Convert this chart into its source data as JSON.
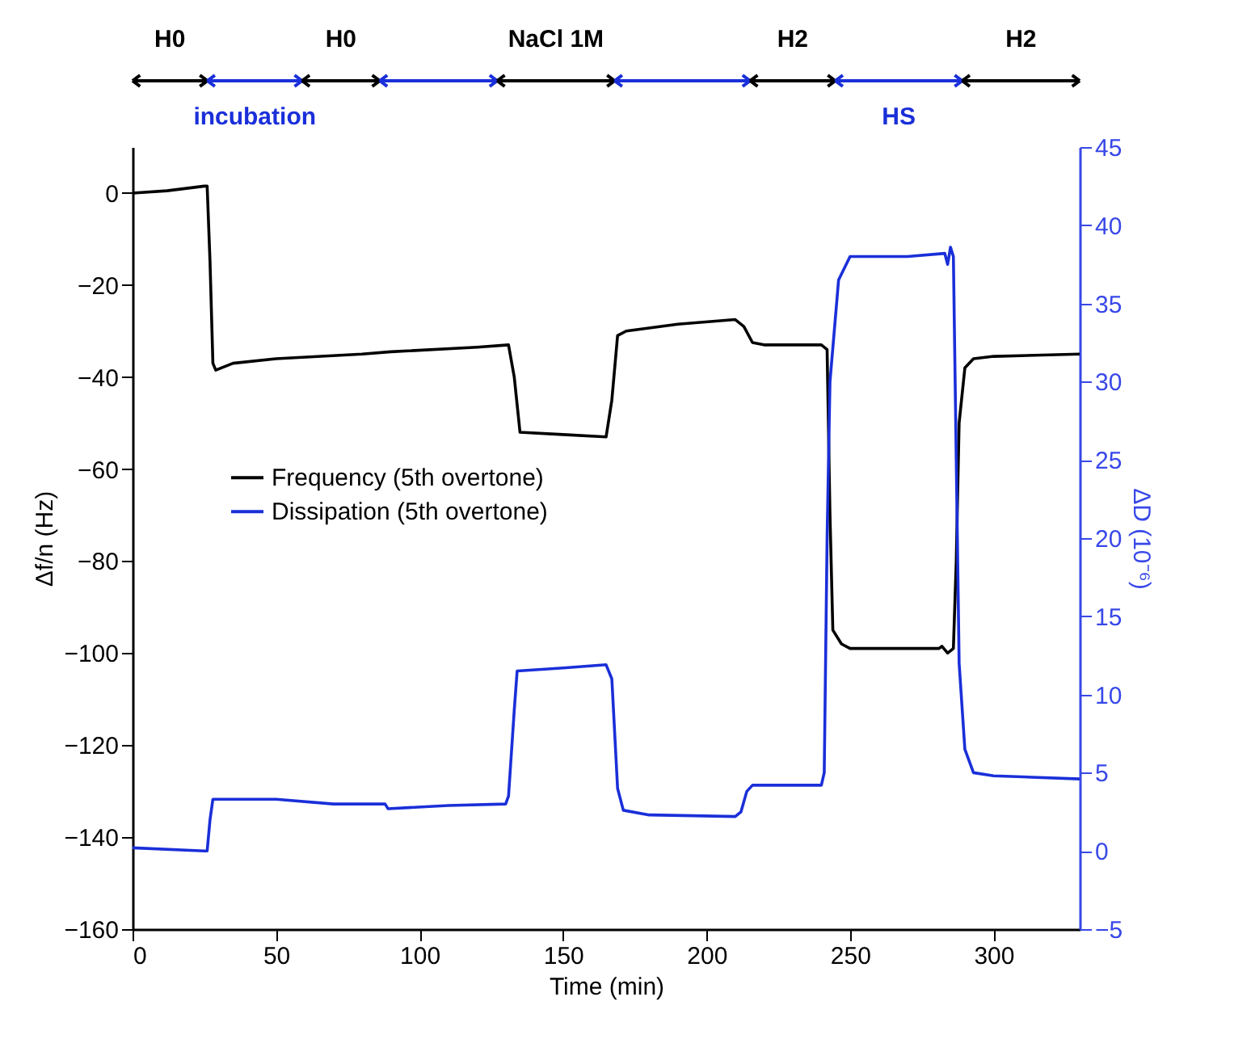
{
  "chart_data": {
    "type": "line",
    "xlabel": "Time (min)",
    "ylabel": "Δf/n (Hz)",
    "y2label": "ΔD (10⁻⁶)",
    "xlim": [
      0,
      330
    ],
    "xticks": [
      0,
      50,
      100,
      150,
      200,
      250,
      300
    ],
    "ylim": [
      -160,
      10
    ],
    "yticks": [
      -160,
      -140,
      -120,
      -100,
      -80,
      -60,
      -40,
      -20,
      0
    ],
    "y2lim": [
      -5,
      45
    ],
    "y2ticks": [
      -5,
      0,
      5,
      10,
      15,
      20,
      25,
      30,
      35,
      40,
      45
    ],
    "grid": false,
    "legend": "left",
    "series": [
      {
        "name": "Frequency (5th overtone)",
        "color": "#000000",
        "x": [
          0,
          12,
          25,
          26,
          27,
          28,
          29,
          35,
          50,
          80,
          90,
          120,
          131,
          133,
          135,
          150,
          165,
          167,
          169,
          172,
          190,
          210,
          213,
          216,
          220,
          240,
          242,
          243,
          244,
          247,
          250,
          270,
          281,
          282,
          284,
          286,
          287,
          288,
          290,
          293,
          300,
          330
        ],
        "values": [
          0,
          0.5,
          1.5,
          1.5,
          -15,
          -37,
          -38.5,
          -37,
          -36,
          -35,
          -34.5,
          -33.5,
          -33,
          -40,
          -52,
          -52.5,
          -53,
          -45,
          -31,
          -30,
          -28.5,
          -27.5,
          -29,
          -32.5,
          -33,
          -33,
          -34,
          -70,
          -95,
          -98,
          -99,
          -99,
          -99,
          -98.5,
          -100,
          -99,
          -80,
          -50,
          -38,
          -36,
          -35.5,
          -35
        ]
      },
      {
        "name": "Dissipation (5th overtone)",
        "color": "#1a2fd9",
        "axis": "y2",
        "x": [
          0,
          25,
          26,
          27,
          28,
          50,
          70,
          88,
          89,
          110,
          130,
          131,
          133,
          134,
          150,
          165,
          167,
          169,
          171,
          180,
          210,
          212,
          214,
          216,
          240,
          241,
          242,
          243,
          246,
          250,
          270,
          283,
          284,
          285,
          286,
          287,
          288,
          290,
          293,
          300,
          330
        ],
        "values": [
          0.2,
          0,
          0,
          2,
          3.3,
          3.3,
          3.0,
          3.0,
          2.7,
          2.9,
          3.0,
          3.5,
          9,
          11.5,
          11.7,
          11.9,
          11,
          4,
          2.6,
          2.3,
          2.2,
          2.5,
          3.8,
          4.2,
          4.2,
          5,
          20,
          30,
          36.5,
          38,
          38,
          38.2,
          37.5,
          38.6,
          38,
          25,
          12,
          6.5,
          5,
          4.8,
          4.6
        ]
      }
    ],
    "annotations": [
      "H0",
      "incubation",
      "H0",
      "NaCl 1M",
      "H2",
      "HS",
      "H2"
    ]
  }
}
